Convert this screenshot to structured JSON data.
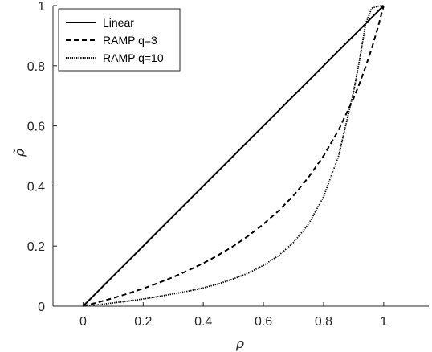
{
  "chart_data": {
    "type": "line",
    "xlabel": "ρ",
    "ylabel": "ρ̃",
    "xlim": [
      -0.1,
      1.15
    ],
    "ylim": [
      0,
      1
    ],
    "x_ticks": [
      "0",
      "0.2",
      "0.4",
      "0.6",
      "0.8",
      "1"
    ],
    "y_ticks": [
      "0",
      "0.2",
      "0.4",
      "0.6",
      "0.8",
      "1"
    ],
    "grid": false,
    "legend_position": "top-left",
    "x": [
      0,
      0.05,
      0.1,
      0.15,
      0.2,
      0.25,
      0.3,
      0.35,
      0.4,
      0.45,
      0.5,
      0.55,
      0.6,
      0.65,
      0.7,
      0.75,
      0.8,
      0.85,
      0.9,
      0.92,
      0.94,
      0.96,
      0.98,
      1
    ],
    "series": [
      {
        "name": "Linear",
        "style": "solid",
        "values": [
          0,
          0.05,
          0.1,
          0.15,
          0.2,
          0.25,
          0.3,
          0.35,
          0.4,
          0.45,
          0.5,
          0.55,
          0.6,
          0.65,
          0.7,
          0.75,
          0.8,
          0.85,
          0.9,
          0.92,
          0.94,
          0.96,
          0.98,
          1
        ]
      },
      {
        "name": "RAMP q=3",
        "style": "dashed",
        "values": [
          0,
          0.013,
          0.027,
          0.042,
          0.059,
          0.077,
          0.097,
          0.119,
          0.143,
          0.17,
          0.2,
          0.234,
          0.273,
          0.317,
          0.368,
          0.429,
          0.5,
          0.586,
          0.692,
          0.742,
          0.797,
          0.857,
          0.925,
          1
        ]
      },
      {
        "name": "RAMP q=10",
        "style": "dotted",
        "values": [
          0,
          0.005,
          0.011,
          0.017,
          0.024,
          0.032,
          0.041,
          0.05,
          0.061,
          0.074,
          0.091,
          0.11,
          0.136,
          0.168,
          0.212,
          0.273,
          0.364,
          0.5,
          0.714,
          0.821,
          0.94,
          0.991,
          0.998,
          1
        ]
      }
    ],
    "colors": {
      "line": "#000000",
      "axis": "#262626",
      "background": "#ffffff"
    }
  }
}
